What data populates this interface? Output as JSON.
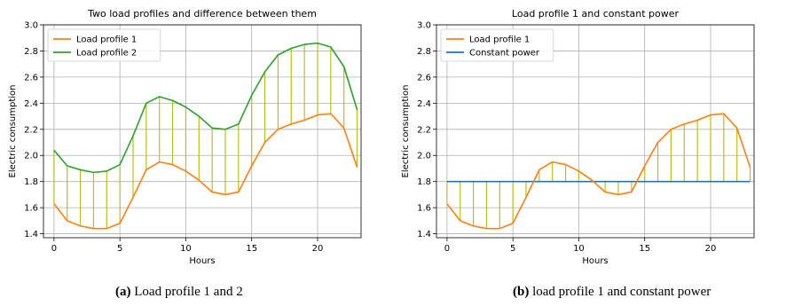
{
  "chart_data": [
    {
      "type": "line",
      "title": "Two load profiles and difference between them",
      "xlabel": "Hours",
      "ylabel": "Electric consumption",
      "xlim": [
        -0.8,
        23.3
      ],
      "ylim": [
        1.37,
        3.0
      ],
      "xticks": [
        0,
        5,
        10,
        15,
        20
      ],
      "yticks": [
        1.4,
        1.6,
        1.8,
        2.0,
        2.2,
        2.4,
        2.6,
        2.8,
        3.0
      ],
      "grid": true,
      "legend_position": "top-left",
      "x": [
        0,
        1,
        2,
        3,
        4,
        5,
        6,
        7,
        8,
        9,
        10,
        11,
        12,
        13,
        14,
        15,
        16,
        17,
        18,
        19,
        20,
        21,
        22,
        23
      ],
      "series": [
        {
          "name": "Load profile 1",
          "color": "#ff7f0e",
          "values": [
            1.63,
            1.5,
            1.46,
            1.44,
            1.44,
            1.48,
            1.68,
            1.89,
            1.95,
            1.93,
            1.88,
            1.81,
            1.72,
            1.7,
            1.72,
            1.92,
            2.1,
            2.2,
            2.24,
            2.27,
            2.31,
            2.32,
            2.21,
            1.91
          ]
        },
        {
          "name": "Load profile 2",
          "color": "#2ca02c",
          "values": [
            2.04,
            1.92,
            1.89,
            1.87,
            1.88,
            1.93,
            2.15,
            2.4,
            2.45,
            2.42,
            2.37,
            2.3,
            2.21,
            2.2,
            2.24,
            2.46,
            2.64,
            2.77,
            2.82,
            2.85,
            2.86,
            2.83,
            2.68,
            2.35
          ]
        }
      ],
      "difference_color": "#bcbd22"
    },
    {
      "type": "line",
      "title": "Load profile 1 and constant power",
      "xlabel": "Hours",
      "ylabel": "Electric consumption",
      "xlim": [
        -0.8,
        23.3
      ],
      "ylim": [
        1.37,
        3.0
      ],
      "xticks": [
        0,
        5,
        10,
        15,
        20
      ],
      "yticks": [
        1.4,
        1.6,
        1.8,
        2.0,
        2.2,
        2.4,
        2.6,
        2.8,
        3.0
      ],
      "grid": true,
      "legend_position": "top-left",
      "x": [
        0,
        1,
        2,
        3,
        4,
        5,
        6,
        7,
        8,
        9,
        10,
        11,
        12,
        13,
        14,
        15,
        16,
        17,
        18,
        19,
        20,
        21,
        22,
        23
      ],
      "series": [
        {
          "name": "Load profile 1",
          "color": "#ff7f0e",
          "values": [
            1.63,
            1.5,
            1.46,
            1.44,
            1.44,
            1.48,
            1.68,
            1.89,
            1.95,
            1.93,
            1.88,
            1.81,
            1.72,
            1.7,
            1.72,
            1.92,
            2.1,
            2.2,
            2.24,
            2.27,
            2.31,
            2.32,
            2.21,
            1.91
          ]
        },
        {
          "name": "Constant power",
          "color": "#1f77b4",
          "values": [
            1.8,
            1.8,
            1.8,
            1.8,
            1.8,
            1.8,
            1.8,
            1.8,
            1.8,
            1.8,
            1.8,
            1.8,
            1.8,
            1.8,
            1.8,
            1.8,
            1.8,
            1.8,
            1.8,
            1.8,
            1.8,
            1.8,
            1.8,
            1.8
          ]
        }
      ],
      "difference_color": "#bcbd22"
    }
  ],
  "captions": [
    {
      "tag": "(a)",
      "text": " Load profile 1 and 2"
    },
    {
      "tag": "(b)",
      "text": " load profile 1 and constant power"
    }
  ]
}
